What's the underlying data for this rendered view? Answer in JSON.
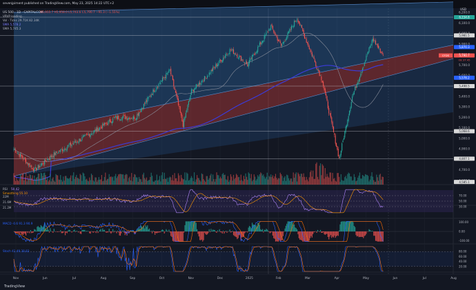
{
  "header": {
    "publish_text": "sevenjpiment published on TradingView.com, May 23, 2025 14:22 UTC+2"
  },
  "legend": {
    "symbol": "US 500 · 1D · CAPITALCOM",
    "ohlc": "O5,955.7  H5,958.0  L5,743.6  C5,790.7  −91.3 (−1.55%)",
    "vrvp": "VRVP loading...",
    "vol": "Vol · Ticks  29.71K  82.34K",
    "sma1": "SMA  5,578.2",
    "sma2": "SMA  5,745.3"
  },
  "colors": {
    "background": "#131722",
    "up": "#26a69a",
    "down": "#ef5350",
    "upper_channel": "#2f6fb5",
    "lower_channel": "#b83b3b",
    "long_sma": "#3b3bd8",
    "short_sma": "#8a8f9c",
    "rsi": "#b388ff",
    "rsi_ma": "#ff9800",
    "macd": "#2962ff",
    "signal": "#ff6d00",
    "stoch_k": "#2962ff",
    "stoch_d": "#ff6d00"
  },
  "price_axis": {
    "currency": "USD",
    "ticks": [
      "6,200.0",
      "6,100.0",
      "6,000.0",
      "5,900.0",
      "5,800.0",
      "5,700.0",
      "5,600.0",
      "5,500.0",
      "5,400.0",
      "5,300.0",
      "5,200.0",
      "5,100.0",
      "5,000.0",
      "4,900.0",
      "4,800.0",
      "4,700.0",
      "4,600.0"
    ],
    "tags": [
      {
        "label": "6,154.8",
        "color": "#26a69a",
        "value": 6154.8
      },
      {
        "label": "5,981.5",
        "color": "#d9d9d9",
        "value": 5981.5
      },
      {
        "label": "5,870.3",
        "color": "#2962ff",
        "value": 5870.3
      },
      {
        "label": "5,790.7",
        "color": "#ef5350",
        "value": 5790.7
      },
      {
        "label": "5,578.2",
        "color": "#2962ff",
        "value": 5578.2
      },
      {
        "label": "5,498.5",
        "color": "#d9d9d9",
        "value": 5498.5
      },
      {
        "label": "5,068.6",
        "color": "#d9d9d9",
        "value": 5068.6
      },
      {
        "label": "4,807.1",
        "color": "#d9d9d9",
        "value": 4807.1
      },
      {
        "label": "4,585.1",
        "color": "#d9d9d9",
        "value": 4585.1
      }
    ],
    "countdown": "09:37:45",
    "countdown_prefix": "CFDS"
  },
  "time_axis": {
    "labels": [
      "Nov",
      "Jun",
      "Jul",
      "Aug",
      "Sep",
      "Oct",
      "Nov",
      "Dec",
      "2025",
      "Feb",
      "Mar",
      "Apr",
      "May",
      "Jun",
      "Jul",
      "Aug"
    ]
  },
  "horizontal_levels": [
    6154.8,
    5981.5,
    5498.5,
    5068.6,
    4807.1
  ],
  "chart_data": [
    {
      "type": "candlestick",
      "title": "US 500 · 1D · CAPITALCOM",
      "x_range": [
        "Nov 2023",
        "Aug 2025"
      ],
      "ylim": [
        4560,
        6240
      ],
      "key_points": [
        {
          "t": "Nov",
          "price": 4900
        },
        {
          "t": "Dec",
          "price": 4700
        },
        {
          "t": "Jan",
          "price": 4850
        },
        {
          "t": "Mar",
          "price": 5050
        },
        {
          "t": "Apr",
          "price": 5200
        },
        {
          "t": "May",
          "price": 5200
        },
        {
          "t": "Jun",
          "price": 5450
        },
        {
          "t": "Jul",
          "price": 5650
        },
        {
          "t": "Aug (low)",
          "price": 5130
        },
        {
          "t": "Aug",
          "price": 5450
        },
        {
          "t": "Sep",
          "price": 5600
        },
        {
          "t": "Oct",
          "price": 5850
        },
        {
          "t": "Nov",
          "price": 5700
        },
        {
          "t": "Dec",
          "price": 6070
        },
        {
          "t": "2025",
          "price": 5880
        },
        {
          "t": "Feb",
          "price": 6150
        },
        {
          "t": "Mar",
          "price": 5550
        },
        {
          "t": "Apr (low)",
          "price": 4807
        },
        {
          "t": "Apr",
          "price": 5400
        },
        {
          "t": "May",
          "price": 5950
        },
        {
          "t": "May 23",
          "price": 5790.7
        }
      ],
      "channel_upper_band": {
        "start": [
          4980,
          6200
        ],
        "end": [
          5820,
          6300
        ]
      },
      "channel_mid": {
        "start": [
          4640,
          5030
        ],
        "end": [
          5760,
          5890
        ]
      },
      "channel_lower_band": {
        "start": [
          4570,
          4640
        ],
        "end": [
          5150,
          5250
        ]
      },
      "sma_long": {
        "name": "SMA",
        "last": 5578.2
      },
      "sma_short": {
        "name": "SMA",
        "last": 5745.3
      }
    },
    {
      "type": "bar",
      "title": "Vol · Ticks",
      "values_note": "daily tick volume",
      "last": [
        "29.71K",
        "82.34K"
      ]
    },
    {
      "type": "line",
      "title": "RSI",
      "legend": [
        "RSI 50.42",
        "Smoothing 55.10"
      ],
      "y_ticks": [
        "22M",
        "21.6M",
        "21.2M"
      ],
      "right_ticks": [
        "70.00",
        "50.00",
        "30.00"
      ],
      "last": 50.42
    },
    {
      "type": "line",
      "title": "MACD",
      "legend": [
        "MACD -0.6  91.3  90.9"
      ],
      "right_ticks": [
        "100.00",
        "0.00",
        "-100.00"
      ]
    },
    {
      "type": "line",
      "title": "Stoch",
      "legend": [
        "Stoch  41.49  38.83"
      ],
      "right_ticks": [
        "80.00",
        "60.00",
        "40.00",
        "20.00"
      ]
    }
  ]
}
